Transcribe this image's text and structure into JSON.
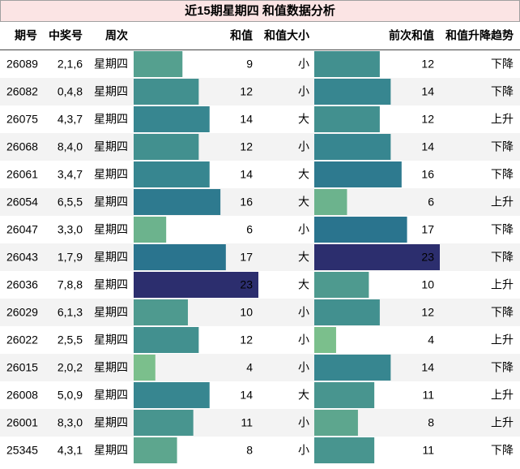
{
  "title": "近15期星期四 和值数据分析",
  "table": {
    "columns": [
      "期号",
      "中奖号",
      "周次",
      "和值",
      "和值大小",
      "前次和值",
      "和值升降趋势"
    ],
    "rows": [
      [
        "26089",
        "2,1,6",
        "星期四",
        9,
        "小",
        12,
        "下降"
      ],
      [
        "26082",
        "0,4,8",
        "星期四",
        12,
        "小",
        14,
        "下降"
      ],
      [
        "26075",
        "4,3,7",
        "星期四",
        14,
        "大",
        12,
        "上升"
      ],
      [
        "26068",
        "8,4,0",
        "星期四",
        12,
        "小",
        14,
        "下降"
      ],
      [
        "26061",
        "3,4,7",
        "星期四",
        14,
        "大",
        16,
        "下降"
      ],
      [
        "26054",
        "6,5,5",
        "星期四",
        16,
        "大",
        6,
        "上升"
      ],
      [
        "26047",
        "3,3,0",
        "星期四",
        6,
        "小",
        17,
        "下降"
      ],
      [
        "26043",
        "1,7,9",
        "星期四",
        17,
        "大",
        23,
        "下降"
      ],
      [
        "26036",
        "7,8,8",
        "星期四",
        23,
        "大",
        10,
        "上升"
      ],
      [
        "26029",
        "6,1,3",
        "星期四",
        10,
        "小",
        12,
        "下降"
      ],
      [
        "26022",
        "2,5,5",
        "星期四",
        12,
        "小",
        4,
        "上升"
      ],
      [
        "26015",
        "2,0,2",
        "星期四",
        4,
        "小",
        14,
        "下降"
      ],
      [
        "26008",
        "5,0,9",
        "星期四",
        14,
        "大",
        11,
        "上升"
      ],
      [
        "26001",
        "8,3,0",
        "星期四",
        11,
        "小",
        8,
        "上升"
      ],
      [
        "25345",
        "4,3,1",
        "星期四",
        8,
        "小",
        11,
        "下降"
      ]
    ]
  }
}
